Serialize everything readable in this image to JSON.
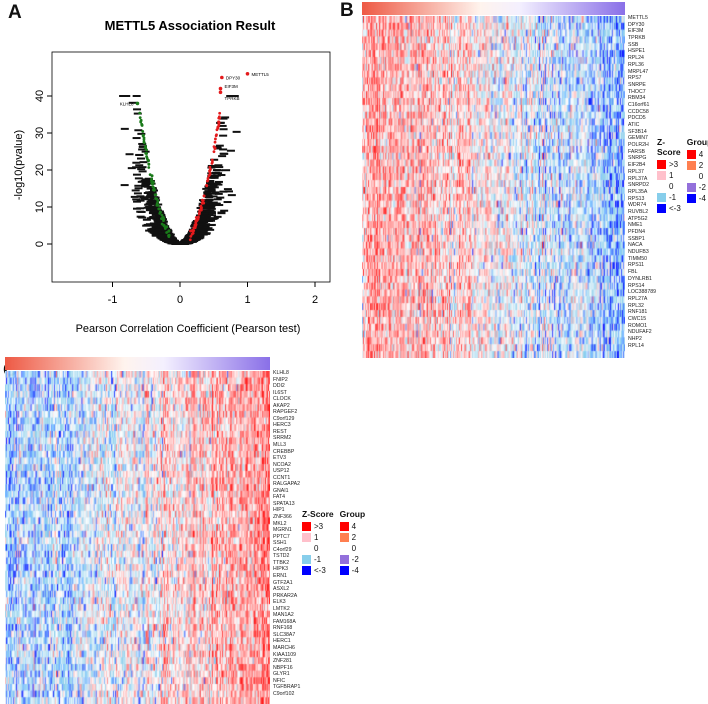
{
  "chart_data": [
    {
      "panel": "A",
      "type": "scatter",
      "title": "METTL5 Association Result",
      "xlabel": "Pearson Correlation Coefficient (Pearson test)",
      "ylabel": "-log10(pvalue)",
      "xlim": [
        -1.8,
        2.2
      ],
      "ylim": [
        -1,
        48
      ],
      "xticks": [
        "-1",
        "0",
        "1",
        "2"
      ],
      "xtick_values": [
        -1,
        0,
        1,
        2
      ],
      "yticks": [
        "0",
        "10",
        "20",
        "30",
        "40"
      ],
      "ytick_values": [
        0,
        10,
        20,
        30,
        40
      ],
      "colors": {
        "positive": "#e41a1c",
        "negative": "#1a7a1a",
        "nonsig": "#000000"
      },
      "labeled_points": [
        {
          "gene": "METTL5",
          "x": 1.0,
          "y": 46
        },
        {
          "gene": "DPY30",
          "x": 0.62,
          "y": 45
        },
        {
          "gene": "EIF3M",
          "x": 0.6,
          "y": 42
        },
        {
          "gene": "TPRKB",
          "x": 0.6,
          "y": 41
        },
        {
          "gene": "KLHL8",
          "x": -0.63,
          "y": 38
        }
      ]
    },
    {
      "panel": "B",
      "type": "heatmap",
      "direction": "positively correlated",
      "genes": [
        "METTL5",
        "DPY30",
        "EIF3M",
        "TPRKB",
        "SSB",
        "HSPE1",
        "RPL24",
        "RPL36",
        "MRPL47",
        "RPS7",
        "SNRPE",
        "THOC7",
        "RBM34",
        "C16orf61",
        "CCDC58",
        "PDCD5",
        "ATIC",
        "SF3B14",
        "GEMIN7",
        "POLR2H",
        "FARSB",
        "SNRPG",
        "EIF2B4",
        "RPL37",
        "RPL37A",
        "SNRPD2",
        "RPL35A",
        "RPS13",
        "WDR74",
        "RUVBL2",
        "ATP5G2",
        "NME1",
        "PFDN4",
        "SSBP1",
        "NACA",
        "NDUFB3",
        "TIMM50",
        "RPS11",
        "FBL",
        "DYNLRB1",
        "RPS14",
        "LOC388789",
        "RPL27A",
        "RPL32",
        "RNF181",
        "CWC15",
        "ROMO1",
        "NDUFAF2",
        "NHP2",
        "RPL14"
      ]
    },
    {
      "panel": "C",
      "type": "heatmap",
      "direction": "negatively correlated",
      "genes": [
        "KLHL8",
        "FNIP2",
        "DDI2",
        "IL6ST",
        "CLOCK",
        "AKAP2",
        "RAPGEF2",
        "C9orf129",
        "HERC3",
        "REST",
        "SRRM2",
        "MLL3",
        "CREBBP",
        "ETV3",
        "NCOA2",
        "USP12",
        "CCNT1",
        "RALGAPA2",
        "GNAI1",
        "FAT4",
        "SPATA13",
        "HIP1",
        "ZNF366",
        "MKL2",
        "MGRN1",
        "PPTC7",
        "SSH1",
        "C4orf29",
        "TSTD2",
        "TTBK2",
        "HIPK3",
        "ERN1",
        "GTF2A1",
        "ASXL2",
        "PRKAR2A",
        "ELK3",
        "LMTK2",
        "MAN1A2",
        "FAM168A",
        "RNF168",
        "SLC38A7",
        "HERC1",
        "MARCH6",
        "KIAA1109",
        "ZNF281",
        "NBPF16",
        "GLYR1",
        "NFIC",
        "TGFBRAP1",
        "C9orf102"
      ]
    }
  ],
  "panels": {
    "a": "A",
    "b": "B",
    "c": "C"
  },
  "legend": {
    "zscore_title": "Z-Score",
    "group_title": "Group",
    "zscore": [
      {
        "label": ">3",
        "color": "#ff0000"
      },
      {
        "label": "1",
        "color": "#ffc0cb"
      },
      {
        "label": "0",
        "color": "#ffffff"
      },
      {
        "label": "-1",
        "color": "#87ceeb"
      },
      {
        "label": "<-3",
        "color": "#0000ff"
      }
    ],
    "group": [
      {
        "label": "4",
        "color": "#ff0000"
      },
      {
        "label": "2",
        "color": "#ff7f50"
      },
      {
        "label": "0",
        "color": "#ffffff"
      },
      {
        "label": "-2",
        "color": "#9370db"
      },
      {
        "label": "-4",
        "color": "#0000ff"
      }
    ]
  }
}
